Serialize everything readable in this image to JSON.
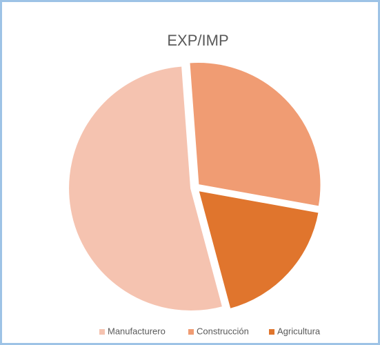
{
  "chart_data": {
    "type": "pie",
    "title": "EXP/IMP",
    "categories": [
      "Manufacturero",
      "Construcción",
      "Agricultura"
    ],
    "values": [
      53,
      29,
      18
    ],
    "colors": [
      "#f5c3b0",
      "#f09c73",
      "#e0752d"
    ],
    "legend": "bottom"
  }
}
